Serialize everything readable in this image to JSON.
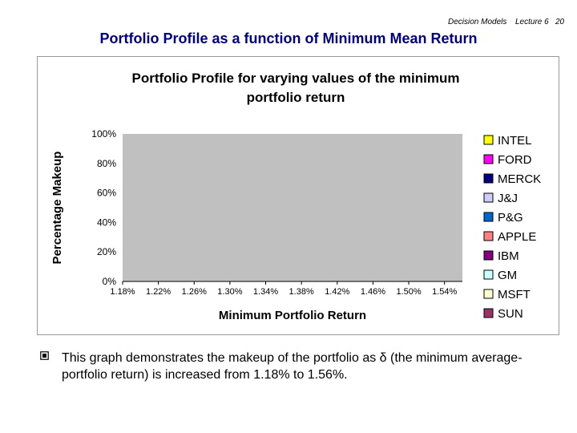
{
  "header": {
    "course": "Decision Models",
    "lecture": "Lecture 6",
    "page": "20"
  },
  "slide_title": "Portfolio Profile as a function of Minimum Mean Return",
  "bullet": {
    "before": "This graph demonstrates the makeup of the portfolio as ",
    "symbol": "δ",
    "after": " (the minimum average-portfolio return) is increased from 1.18% to 1.56%."
  },
  "chart_data": {
    "type": "area",
    "stacked": true,
    "title_lines": [
      "Portfolio Profile for varying values of the minimum",
      "portfolio return"
    ],
    "xlabel": "Minimum Portfolio Return",
    "ylabel": "Percentage Makeup",
    "ylim": [
      0,
      100
    ],
    "yticks": [
      "0%",
      "20%",
      "40%",
      "60%",
      "80%",
      "100%"
    ],
    "xticks": [
      "1.18%",
      "1.22%",
      "1.26%",
      "1.30%",
      "1.34%",
      "1.38%",
      "1.42%",
      "1.46%",
      "1.50%",
      "1.54%"
    ],
    "x": [
      1.18,
      1.22,
      1.26,
      1.3,
      1.34,
      1.38,
      1.42,
      1.46,
      1.5,
      1.54,
      1.56
    ],
    "legend_position": "right",
    "legend_order": [
      "INTEL",
      "FORD",
      "MERCK",
      "J&J",
      "P&G",
      "APPLE",
      "IBM",
      "GM",
      "MSFT",
      "SUN"
    ],
    "series": [
      {
        "name": "SUN",
        "color": "#993366",
        "values": [
          0,
          0,
          0,
          0,
          0,
          0,
          0,
          0,
          0,
          0,
          0
        ]
      },
      {
        "name": "MSFT",
        "color": "#FFFFCC",
        "values": [
          0,
          0,
          0,
          0,
          0,
          0,
          0,
          0,
          0,
          0,
          0
        ]
      },
      {
        "name": "GM",
        "color": "#CCFFFF",
        "values": [
          0,
          0,
          0,
          0,
          0,
          0,
          0,
          0,
          0,
          0,
          0
        ]
      },
      {
        "name": "IBM",
        "color": "#800080",
        "values": [
          0,
          0,
          0,
          0,
          0,
          0,
          0,
          0,
          0,
          0,
          0
        ]
      },
      {
        "name": "APPLE",
        "color": "#FF8080",
        "values": [
          0,
          0,
          0,
          0,
          0,
          0,
          0,
          0,
          0,
          0,
          0
        ]
      },
      {
        "name": "P&G",
        "color": "#0066CC",
        "values": [
          0,
          0,
          0,
          0,
          0,
          0,
          0,
          0,
          0,
          0,
          0
        ]
      },
      {
        "name": "J&J",
        "color": "#CCCCFF",
        "values": [
          0,
          0,
          0,
          0,
          0,
          0,
          0,
          0,
          0,
          0,
          0
        ]
      },
      {
        "name": "MERCK",
        "color": "#000080",
        "values": [
          0,
          0,
          0,
          0,
          0,
          0,
          0,
          0,
          0,
          0,
          0
        ]
      },
      {
        "name": "FORD",
        "color": "#FF00FF",
        "values": [
          0,
          0,
          0,
          0,
          0,
          0,
          0,
          0,
          0,
          0,
          0
        ]
      },
      {
        "name": "INTEL",
        "color": "#FFFF00",
        "values": [
          0,
          0,
          0,
          0,
          0,
          0,
          0,
          0,
          0,
          0,
          0
        ]
      }
    ]
  }
}
